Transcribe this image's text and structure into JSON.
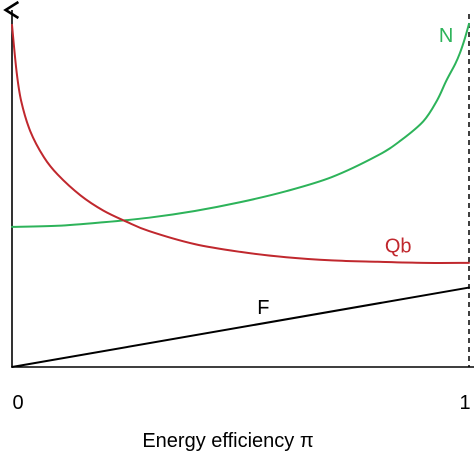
{
  "chart_data": {
    "type": "line",
    "title": "",
    "xlabel": "Energy efficiency π",
    "ylabel": "",
    "xlim": [
      0,
      1
    ],
    "ylim": [
      0,
      100
    ],
    "x_ticks": [
      {
        "value": 0,
        "label": "0"
      },
      {
        "value": 1,
        "label": "1"
      }
    ],
    "grid": false,
    "reference_lines": [
      {
        "x": 1,
        "style": "dashed"
      }
    ],
    "series": [
      {
        "name": "N",
        "color": "#2db35a",
        "label_at": {
          "x": 0.95,
          "y": 93.5
        },
        "x": [
          0.0,
          0.1,
          0.2,
          0.3,
          0.4,
          0.5,
          0.6,
          0.7,
          0.8,
          0.85,
          0.9,
          0.93,
          0.95,
          0.97,
          0.98,
          0.99,
          1.0
        ],
        "y": [
          39.7,
          40.0,
          41.0,
          42.3,
          44.2,
          46.7,
          49.8,
          53.8,
          59.9,
          64.1,
          69.6,
          75.5,
          81.0,
          85.9,
          88.9,
          92.7,
          97.2
        ]
      },
      {
        "name": "Qb",
        "color": "#c0282e",
        "label_at": {
          "x": 0.845,
          "y": 34.0
        },
        "x": [
          0.0,
          0.01,
          0.02,
          0.04,
          0.07,
          0.1,
          0.15,
          0.2,
          0.25,
          0.3,
          0.4,
          0.5,
          0.6,
          0.7,
          0.8,
          0.9,
          1.0
        ],
        "y": [
          96.9,
          83.7,
          75.4,
          66.8,
          59.4,
          54.5,
          48.6,
          44.3,
          41.2,
          38.5,
          34.8,
          32.6,
          31.1,
          30.2,
          29.8,
          29.5,
          29.5
        ]
      },
      {
        "name": "F",
        "color": "#000000",
        "label_at": {
          "x": 0.55,
          "y": 16.5
        },
        "x": [
          0.0,
          1.0
        ],
        "y": [
          0.0,
          22.5
        ]
      }
    ]
  }
}
